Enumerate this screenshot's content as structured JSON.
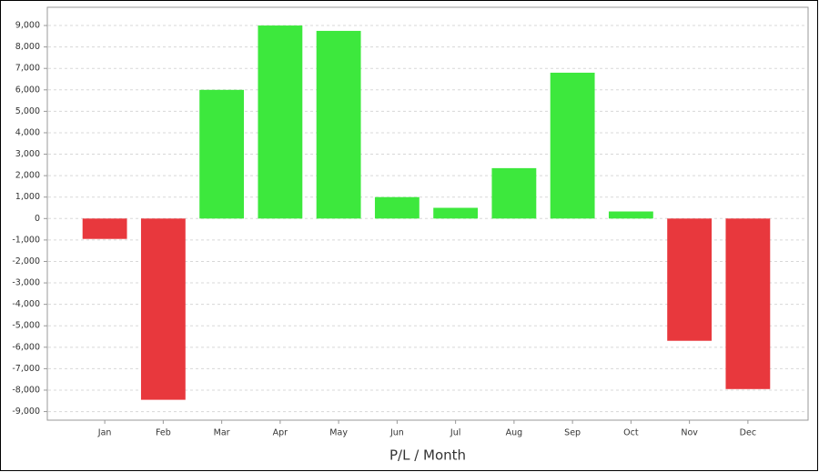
{
  "chart_data": {
    "type": "bar",
    "x_label": "P/L / Month",
    "categories": [
      "Jan",
      "Feb",
      "Mar",
      "Apr",
      "May",
      "Jun",
      "Jul",
      "Aug",
      "Sep",
      "Oct",
      "Nov",
      "Dec"
    ],
    "values": [
      -950,
      -8450,
      6000,
      9000,
      8750,
      1000,
      500,
      2350,
      6800,
      330,
      -5700,
      -7950
    ],
    "positive_color": "#3de83d",
    "negative_color": "#e8383d",
    "ylim": [
      -9400,
      9850
    ],
    "yticks": [
      {
        "value": -9000,
        "label": "-9,000"
      },
      {
        "value": -8000,
        "label": "-8,000"
      },
      {
        "value": -7000,
        "label": "-7,000"
      },
      {
        "value": -6000,
        "label": "-6,000"
      },
      {
        "value": -5000,
        "label": "-5,000"
      },
      {
        "value": -4000,
        "label": "-4,000"
      },
      {
        "value": -3000,
        "label": "-3,000"
      },
      {
        "value": -2000,
        "label": "-2,000"
      },
      {
        "value": -1000,
        "label": "-1,000"
      },
      0,
      {
        "value": 1000,
        "label": "1,000"
      },
      {
        "value": 2000,
        "label": "2,000"
      },
      {
        "value": 3000,
        "label": "3,000"
      },
      {
        "value": 4000,
        "label": "4,000"
      },
      {
        "value": 5000,
        "label": "5,000"
      },
      {
        "value": 6000,
        "label": "6,000"
      },
      {
        "value": 7000,
        "label": "7,000"
      },
      {
        "value": 8000,
        "label": "8,000"
      },
      {
        "value": 9000,
        "label": "9,000"
      }
    ],
    "grid": true
  }
}
